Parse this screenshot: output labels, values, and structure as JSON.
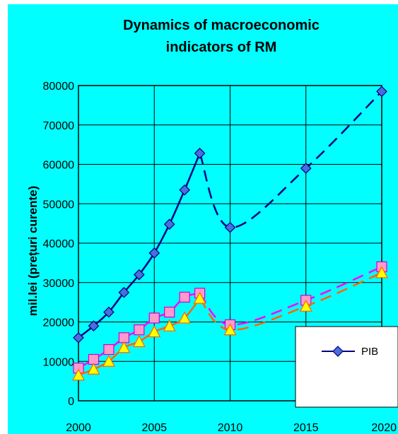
{
  "chart_data": {
    "type": "line",
    "title": "Dynamics  of macroeconomic indicators  of RM",
    "title_lines": [
      "Dynamics  of macroeconomic",
      "indicators  of RM"
    ],
    "xlabel": "",
    "ylabel": "mil.lei (prețuri curente)",
    "xlim": [
      2000,
      2020
    ],
    "ylim": [
      0,
      80000
    ],
    "x_ticks": [
      2000,
      2005,
      2010,
      2015,
      2020
    ],
    "y_ticks": [
      0,
      10000,
      20000,
      30000,
      40000,
      50000,
      60000,
      70000,
      80000
    ],
    "grid": "vertical and horizontal",
    "background": "#00ffff",
    "legend_placement": "lower-right",
    "series": [
      {
        "name": "PIB",
        "color": "#000080",
        "marker": "diamond",
        "marker_color": "#4a6edc",
        "x": [
          2000,
          2001,
          2002,
          2003,
          2004,
          2005,
          2006,
          2007,
          2008,
          2010,
          2015,
          2020
        ],
        "y": [
          16000,
          19000,
          22500,
          27500,
          32000,
          37500,
          44800,
          53500,
          62800,
          44000,
          59000,
          78500
        ],
        "dashed_from_x": 2008
      },
      {
        "color": "#ff00ff",
        "marker": "square",
        "marker_color": "#ff99cc",
        "x": [
          2000,
          2001,
          2002,
          2003,
          2004,
          2005,
          2006,
          2007,
          2008,
          2010,
          2015,
          2020
        ],
        "y": [
          8300,
          10500,
          13000,
          16000,
          18000,
          21000,
          22500,
          26300,
          27300,
          19300,
          25500,
          34000
        ],
        "dashed_from_x": 2008
      },
      {
        "color": "#ff6600",
        "marker": "triangle",
        "marker_color": "#ffff00",
        "x": [
          2000,
          2001,
          2002,
          2003,
          2004,
          2005,
          2006,
          2007,
          2008,
          2010,
          2015,
          2020
        ],
        "y": [
          6500,
          8000,
          10000,
          13500,
          15000,
          17500,
          19000,
          21000,
          26000,
          18000,
          24000,
          32500
        ],
        "dashed_from_x": 2008
      }
    ]
  }
}
